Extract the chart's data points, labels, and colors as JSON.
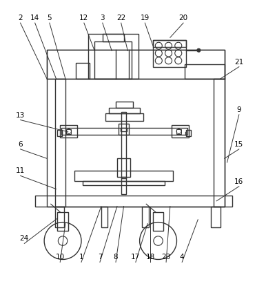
{
  "line_color": "#333333",
  "lw": 1.0,
  "leaders": {
    "2": {
      "lpos": [
        0.075,
        0.965
      ],
      "ppos": [
        0.175,
        0.755
      ]
    },
    "14": {
      "lpos": [
        0.13,
        0.965
      ],
      "ppos": [
        0.21,
        0.755
      ]
    },
    "5": {
      "lpos": [
        0.185,
        0.965
      ],
      "ppos": [
        0.245,
        0.755
      ]
    },
    "12": {
      "lpos": [
        0.315,
        0.965
      ],
      "ppos": [
        0.355,
        0.86
      ]
    },
    "3": {
      "lpos": [
        0.385,
        0.965
      ],
      "ppos": [
        0.42,
        0.86
      ]
    },
    "22": {
      "lpos": [
        0.455,
        0.965
      ],
      "ppos": [
        0.48,
        0.86
      ]
    },
    "19": {
      "lpos": [
        0.545,
        0.965
      ],
      "ppos": [
        0.575,
        0.88
      ]
    },
    "20": {
      "lpos": [
        0.69,
        0.965
      ],
      "ppos": [
        0.64,
        0.91
      ]
    },
    "21": {
      "lpos": [
        0.9,
        0.8
      ],
      "ppos": [
        0.83,
        0.755
      ]
    },
    "9": {
      "lpos": [
        0.9,
        0.62
      ],
      "ppos": [
        0.855,
        0.44
      ]
    },
    "13": {
      "lpos": [
        0.075,
        0.6
      ],
      "ppos": [
        0.255,
        0.555
      ]
    },
    "6": {
      "lpos": [
        0.075,
        0.49
      ],
      "ppos": [
        0.175,
        0.455
      ]
    },
    "11": {
      "lpos": [
        0.075,
        0.39
      ],
      "ppos": [
        0.21,
        0.34
      ]
    },
    "15": {
      "lpos": [
        0.9,
        0.49
      ],
      "ppos": [
        0.845,
        0.455
      ]
    },
    "16": {
      "lpos": [
        0.9,
        0.35
      ],
      "ppos": [
        0.815,
        0.295
      ]
    },
    "24": {
      "lpos": [
        0.09,
        0.135
      ],
      "ppos": [
        0.215,
        0.23
      ]
    },
    "10": {
      "lpos": [
        0.225,
        0.065
      ],
      "ppos": [
        0.245,
        0.21
      ]
    },
    "1": {
      "lpos": [
        0.305,
        0.065
      ],
      "ppos": [
        0.38,
        0.275
      ]
    },
    "7": {
      "lpos": [
        0.375,
        0.065
      ],
      "ppos": [
        0.44,
        0.275
      ]
    },
    "8": {
      "lpos": [
        0.435,
        0.065
      ],
      "ppos": [
        0.465,
        0.275
      ]
    },
    "17": {
      "lpos": [
        0.51,
        0.065
      ],
      "ppos": [
        0.555,
        0.21
      ]
    },
    "18": {
      "lpos": [
        0.565,
        0.065
      ],
      "ppos": [
        0.565,
        0.275
      ]
    },
    "23": {
      "lpos": [
        0.625,
        0.065
      ],
      "ppos": [
        0.64,
        0.275
      ]
    },
    "4": {
      "lpos": [
        0.685,
        0.065
      ],
      "ppos": [
        0.745,
        0.225
      ]
    }
  }
}
